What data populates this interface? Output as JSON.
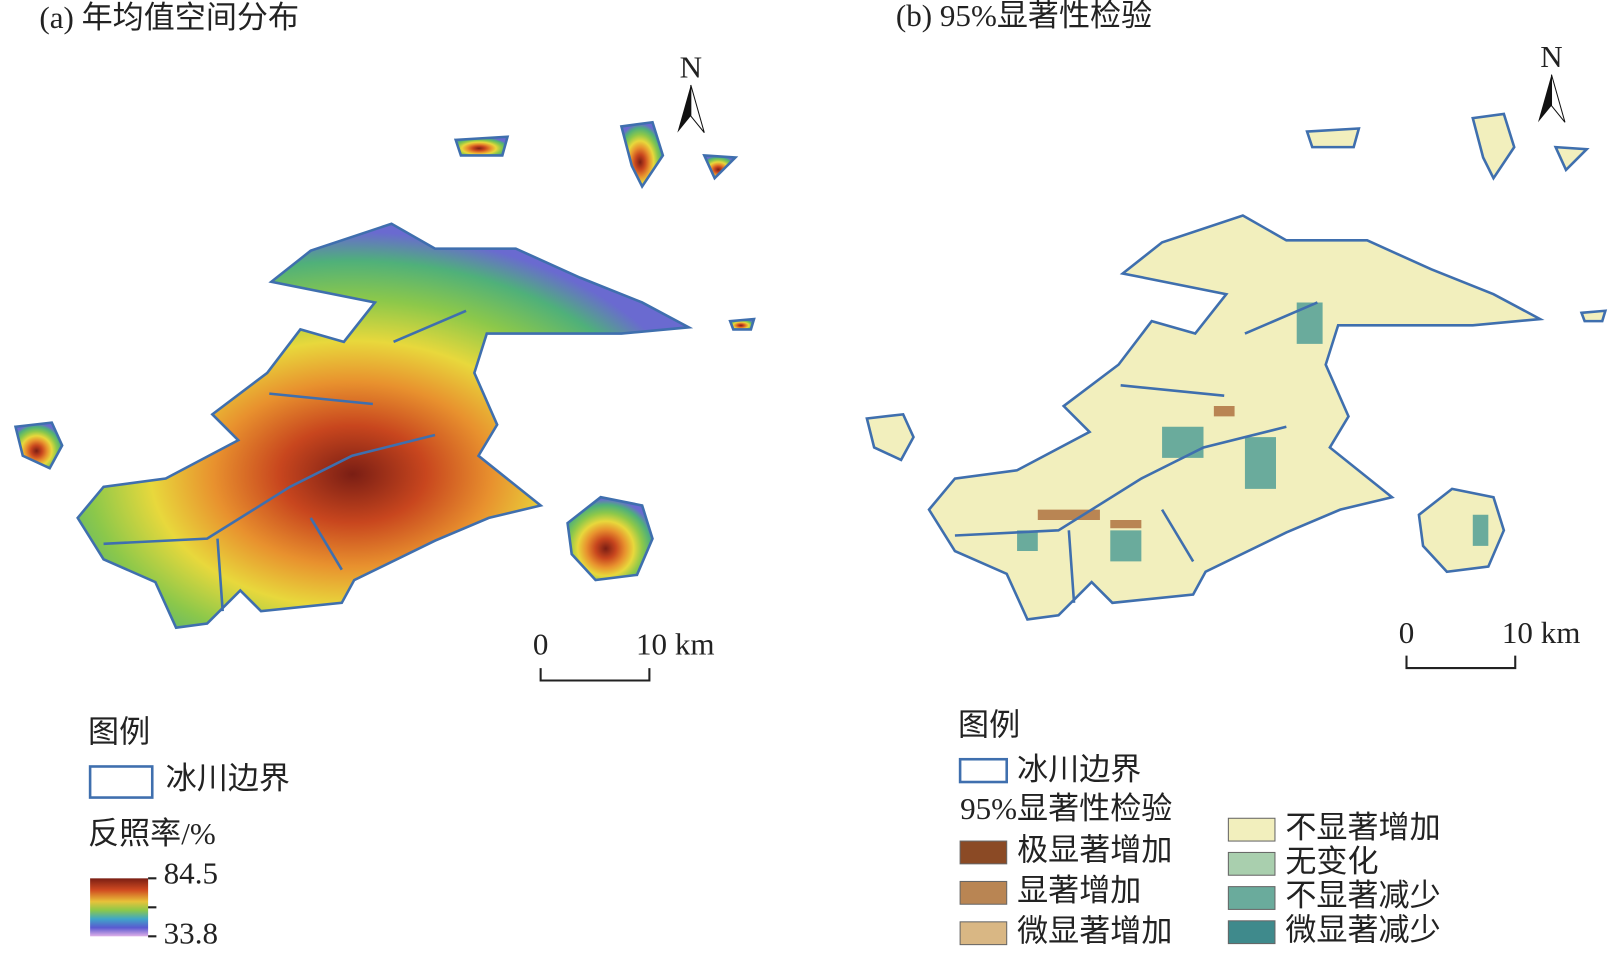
{
  "panel_a": {
    "title": "(a) 年均值空间分布",
    "north": "N",
    "scale_start": "0",
    "scale_end": "10 km",
    "legend": {
      "title": "图例",
      "boundary": "冰川边界",
      "colorbar_title": "反照率/%",
      "max": 84.5,
      "min": 33.8
    }
  },
  "panel_b": {
    "title": "(b) 95%显著性检验",
    "north": "N",
    "scale_start": "0",
    "scale_end": "10 km",
    "legend": {
      "title": "图例",
      "boundary": "冰川边界",
      "subtitle": "95%显著性检验",
      "classes": [
        {
          "name": "极显著增加",
          "color": "#8b4a25"
        },
        {
          "name": "显著增加",
          "color": "#b98553"
        },
        {
          "name": "微显著增加",
          "color": "#d9b784"
        },
        {
          "name": "不显著增加",
          "color": "#f2efbd"
        },
        {
          "name": "无变化",
          "color": "#a9cfae"
        },
        {
          "name": "不显著减少",
          "color": "#6aab9c"
        },
        {
          "name": "微显著减少",
          "color": "#3f8a8c"
        }
      ]
    }
  }
}
